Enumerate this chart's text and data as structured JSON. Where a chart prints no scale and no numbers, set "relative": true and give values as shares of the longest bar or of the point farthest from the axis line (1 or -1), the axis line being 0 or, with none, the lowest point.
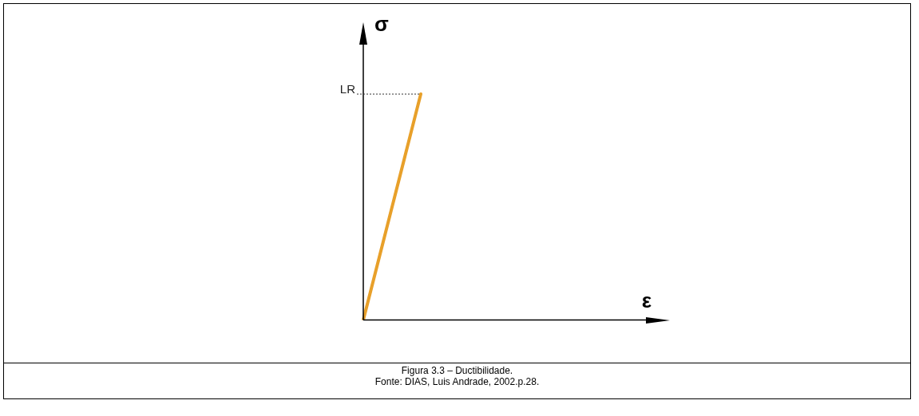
{
  "chart_data": {
    "type": "line",
    "relative": true,
    "categories": [
      null,
      null,
      null,
      null,
      null,
      null
    ],
    "series": [
      {
        "color": "#e8a02a",
        "values": [
          0,
          1,
          null,
          null,
          null,
          null
        ]
      }
    ],
    "xlabel": "ε",
    "ylabel": "σ",
    "ref_lines": [
      {
        "axis": "y",
        "value": 1,
        "label": "LR",
        "line_style": "dotted",
        "color": "#333333"
      }
    ],
    "annotations": [
      "Figura 3.3 – Ductibilidade.",
      "Fonte: DIAS, Luis Andrade, 2002.p.28."
    ],
    "grid": false,
    "legend": false,
    "marker": "none",
    "line_style": "solid"
  }
}
